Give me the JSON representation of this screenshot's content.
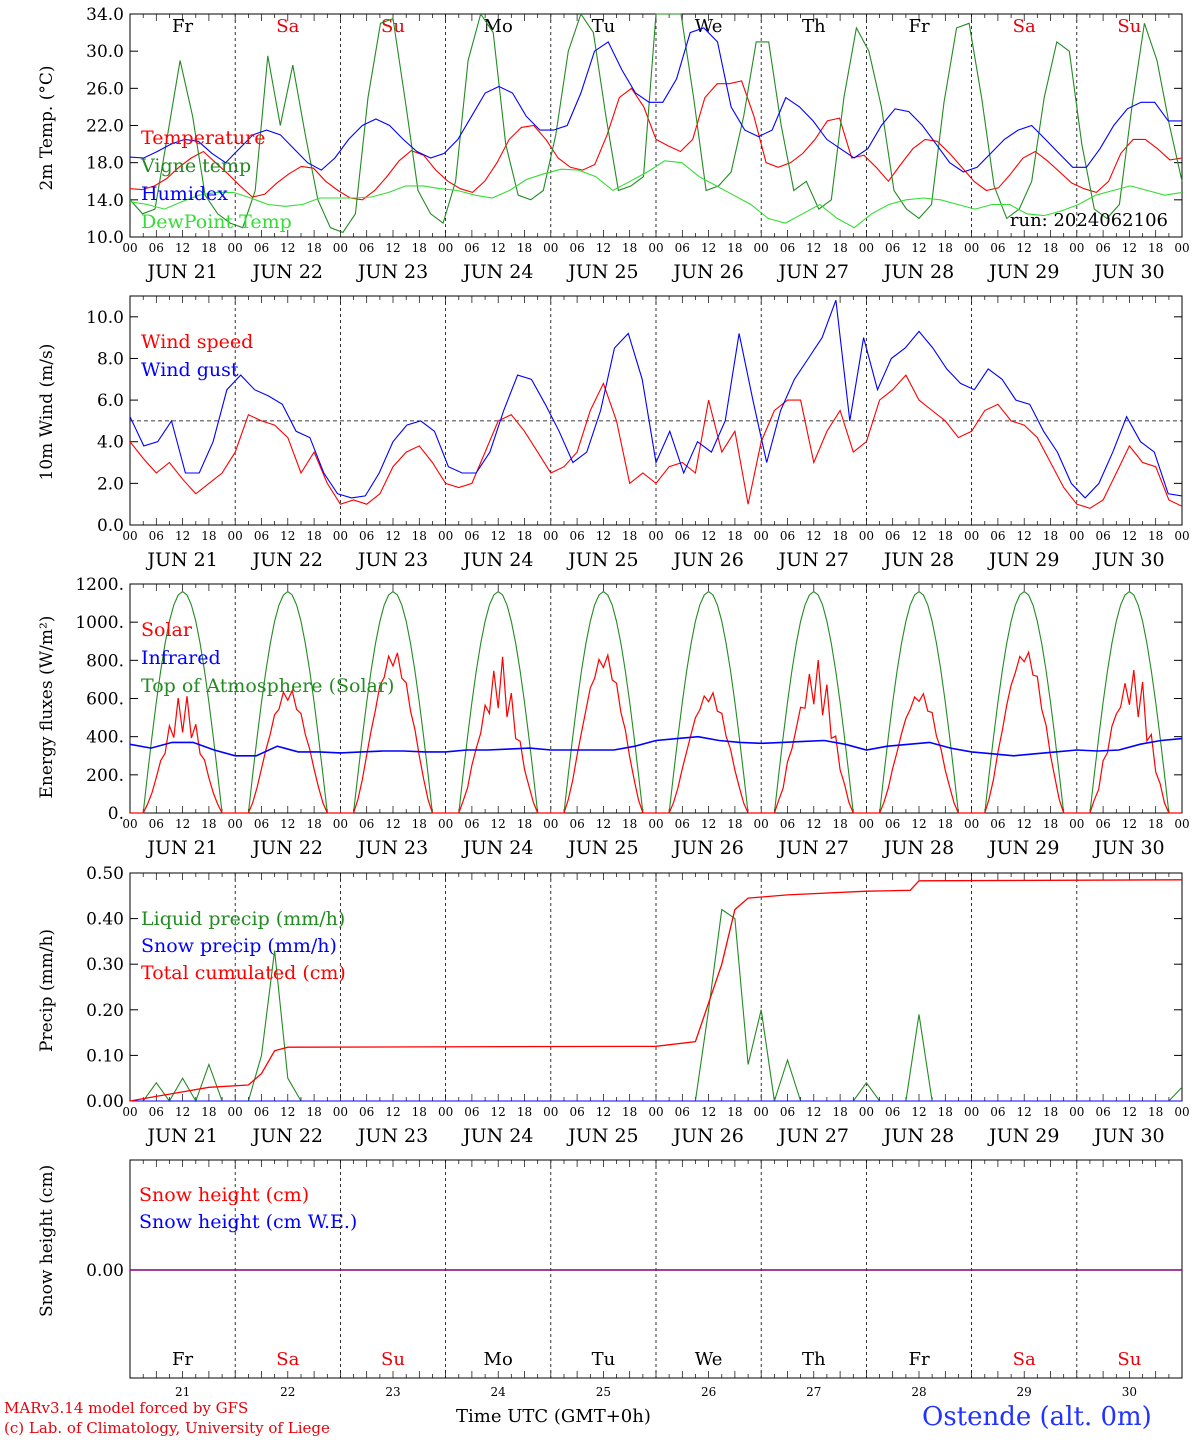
{
  "days": [
    "JUN 21",
    "JUN 22",
    "JUN 23",
    "JUN 24",
    "JUN 25",
    "JUN 26",
    "JUN 27",
    "JUN 28",
    "JUN 29",
    "JUN 30"
  ],
  "day_numbers": [
    "21",
    "22",
    "23",
    "24",
    "25",
    "26",
    "27",
    "28",
    "29",
    "30"
  ],
  "weekdays": [
    "Fr",
    "Sa",
    "Su",
    "Mo",
    "Tu",
    "We",
    "Th",
    "Fr",
    "Sa",
    "Su"
  ],
  "weekend_flags": [
    false,
    true,
    true,
    false,
    false,
    false,
    false,
    false,
    true,
    true
  ],
  "hour_ticks": [
    "00",
    "06",
    "12",
    "18"
  ],
  "hour_tick_last": "00",
  "colors": {
    "weekday": "#000000",
    "weekend": "#e8000b",
    "red": "#ff0000",
    "blue": "#0000ff",
    "green": "#228b22",
    "lightgreen": "#33dd33",
    "purple": "#800080"
  },
  "footer": {
    "credit_line1": "MARv3.14 model forced by GFS",
    "credit_line2": "(c) Lab. of Climatology, University of Liege",
    "xaxis_title": "Time UTC (GMT+0h)",
    "station": "Ostende (alt. 0m)"
  },
  "chart_data": [
    {
      "type": "line",
      "ylabel": "2m Temp. (°C)",
      "ylim": [
        10,
        34
      ],
      "yticks": [
        "10.0",
        "14.0",
        "18.0",
        "22.0",
        "26.0",
        "30.0",
        "34.0"
      ],
      "annotation": "run: 2024062106",
      "x_unit": "hours since 2024-06-21 00 UTC, 3-hourly",
      "series": [
        {
          "name": "Temperature",
          "color": "red",
          "values": [
            15.2,
            15.1,
            15.5,
            16.3,
            17.5,
            18.5,
            19.2,
            18.0,
            16.8,
            15.5,
            14.3,
            14.6,
            15.8,
            16.8,
            17.6,
            17.4,
            16.0,
            15.0,
            14.2,
            14.0,
            15.0,
            16.5,
            18.2,
            19.3,
            18.8,
            17.2,
            16.0,
            15.2,
            14.8,
            16.0,
            18.0,
            20.5,
            21.8,
            22.0,
            20.5,
            18.5,
            17.5,
            17.2,
            17.8,
            21.0,
            25.0,
            26.0,
            24.0,
            20.5,
            19.8,
            19.2,
            20.5,
            25.0,
            26.5,
            26.5,
            26.8,
            23.0,
            18.0,
            17.5,
            18.0,
            19.0,
            20.5,
            22.5,
            22.8,
            18.5,
            18.8,
            17.5,
            16.0,
            17.8,
            19.5,
            20.5,
            20.3,
            19.0,
            17.5,
            16.0,
            15.0,
            15.3,
            16.8,
            18.5,
            19.2,
            18.2,
            17.0,
            15.8,
            15.2,
            14.8,
            16.0,
            19.0,
            20.5,
            20.5,
            19.5,
            18.3,
            18.5
          ]
        },
        {
          "name": "Vigne temp",
          "color": "green",
          "values": [
            14.0,
            12.5,
            13.0,
            21.0,
            29.0,
            23.0,
            14.5,
            12.5,
            11.5,
            11.0,
            15.0,
            29.5,
            22.0,
            28.5,
            21.0,
            14.0,
            11.0,
            10.5,
            12.5,
            25.0,
            33.0,
            33.5,
            24.5,
            15.0,
            12.5,
            11.5,
            16.0,
            29.0,
            34.0,
            32.0,
            20.0,
            14.5,
            14.0,
            15.0,
            21.0,
            30.0,
            34.0,
            32.0,
            23.0,
            15.0,
            15.5,
            16.5,
            34.0,
            34.0,
            34.0,
            25.0,
            15.0,
            15.5,
            17.0,
            23.0,
            31.0,
            31.0,
            22.0,
            15.0,
            16.0,
            13.0,
            14.0,
            25.0,
            32.5,
            30.0,
            24.0,
            15.0,
            13.0,
            12.0,
            13.5,
            24.5,
            32.5,
            33.0,
            25.0,
            15.5,
            12.0,
            13.0,
            16.0,
            25.0,
            31.0,
            30.0,
            20.0,
            13.0,
            12.0,
            13.5,
            24.0,
            33.0,
            29.0,
            22.0,
            16.0
          ]
        },
        {
          "name": "Humidex",
          "color": "blue",
          "values": [
            18.6,
            18.5,
            19.2,
            20.0,
            20.5,
            20.3,
            19.0,
            18.0,
            19.5,
            21.0,
            21.5,
            21.0,
            19.5,
            18.0,
            17.2,
            18.5,
            20.5,
            22.0,
            22.7,
            22.0,
            20.5,
            19.2,
            18.5,
            19.0,
            20.5,
            23.0,
            25.5,
            26.2,
            25.5,
            23.0,
            21.5,
            21.5,
            22.0,
            25.5,
            30.0,
            31.0,
            28.0,
            25.5,
            24.5,
            24.5,
            27.0,
            32.0,
            32.5,
            31.0,
            24.0,
            21.5,
            20.8,
            21.5,
            25.0,
            24.0,
            22.5,
            20.5,
            19.5,
            18.5,
            19.5,
            22.0,
            23.8,
            23.5,
            22.0,
            20.0,
            18.0,
            17.0,
            17.5,
            19.0,
            20.5,
            21.5,
            22.0,
            20.5,
            19.0,
            17.5,
            17.5,
            19.5,
            22.0,
            23.8,
            24.5,
            24.5,
            22.5,
            22.5
          ]
        },
        {
          "name": "DewPoint Temp",
          "color": "lightgreen",
          "values": [
            13.8,
            13.5,
            13.0,
            13.8,
            14.5,
            14.8,
            14.8,
            14.2,
            13.5,
            13.3,
            13.5,
            14.2,
            14.2,
            14.2,
            14.3,
            14.8,
            15.5,
            15.5,
            15.2,
            15.0,
            14.5,
            14.2,
            15.0,
            16.2,
            16.8,
            17.3,
            17.2,
            16.5,
            15.0,
            16.0,
            17.0,
            18.2,
            18.0,
            16.5,
            15.5,
            14.5,
            13.5,
            12.0,
            11.5,
            12.5,
            13.5,
            12.0,
            11.0,
            12.5,
            13.5,
            14.0,
            14.2,
            14.0,
            13.5,
            13.0,
            13.5,
            13.5,
            12.5,
            12.3,
            12.8,
            13.5,
            14.5,
            15.0,
            15.5,
            15.0,
            14.5,
            14.8
          ]
        }
      ]
    },
    {
      "type": "line",
      "ylabel": "10m Wind (m/s)",
      "ylim": [
        0,
        11
      ],
      "yticks": [
        "0.0",
        "2.0",
        "4.0",
        "6.0",
        "8.0",
        "10.0"
      ],
      "reference_line": 5.0,
      "series": [
        {
          "name": "Wind speed",
          "color": "red",
          "values": [
            4.0,
            3.2,
            2.5,
            3.0,
            2.2,
            1.5,
            2.0,
            2.5,
            3.5,
            5.3,
            5.0,
            4.8,
            4.2,
            2.5,
            3.5,
            2.0,
            1.0,
            1.2,
            1.0,
            1.5,
            2.8,
            3.5,
            3.8,
            3.0,
            2.0,
            1.8,
            2.0,
            3.5,
            5.0,
            5.3,
            4.5,
            3.5,
            2.5,
            2.8,
            3.5,
            5.5,
            6.8,
            5.0,
            2.0,
            2.5,
            2.0,
            2.8,
            3.0,
            2.5,
            6.0,
            3.5,
            4.5,
            1.0,
            4.0,
            5.5,
            6.0,
            6.0,
            3.0,
            4.5,
            5.5,
            3.5,
            4.0,
            6.0,
            6.5,
            7.2,
            6.0,
            5.5,
            5.0,
            4.2,
            4.5,
            5.5,
            5.8,
            5.0,
            4.8,
            4.2,
            3.0,
            1.8,
            1.0,
            0.8,
            1.2,
            2.5,
            3.8,
            3.0,
            2.8,
            1.2,
            0.9
          ]
        },
        {
          "name": "Wind gust",
          "color": "blue",
          "values": [
            5.2,
            3.8,
            4.0,
            5.0,
            2.5,
            2.5,
            4.0,
            6.5,
            7.2,
            6.5,
            6.2,
            5.8,
            4.5,
            4.2,
            2.5,
            1.5,
            1.3,
            1.4,
            2.5,
            4.0,
            4.8,
            5.0,
            4.5,
            2.8,
            2.5,
            2.5,
            3.5,
            5.5,
            7.2,
            7.0,
            5.8,
            4.5,
            3.0,
            3.5,
            5.5,
            8.5,
            9.2,
            7.0,
            3.0,
            4.5,
            2.5,
            4.0,
            3.5,
            5.0,
            9.2,
            6.0,
            3.0,
            5.5,
            7.0,
            8.0,
            9.0,
            10.8,
            5.0,
            9.0,
            6.5,
            8.0,
            8.5,
            9.3,
            8.5,
            7.5,
            6.8,
            6.5,
            7.5,
            7.0,
            6.0,
            5.8,
            4.5,
            3.5,
            2.0,
            1.3,
            2.0,
            3.5,
            5.2,
            4.0,
            3.5,
            1.5,
            1.4
          ]
        }
      ]
    },
    {
      "type": "line",
      "ylabel": "Energy fluxes (W/m²)",
      "ylim": [
        0,
        1200
      ],
      "yticks": [
        "0.",
        "200.",
        "400.",
        "600.",
        "800.",
        "1000.",
        "1200."
      ],
      "series": [
        {
          "name": "Solar",
          "color": "red",
          "daily_peaks": [
            650,
            660,
            860,
            840,
            850,
            650,
            860,
            650,
            880,
            840
          ]
        },
        {
          "name": "Infrared",
          "color": "blue",
          "values": [
            360,
            340,
            370,
            370,
            330,
            300,
            300,
            350,
            320,
            320,
            315,
            320,
            325,
            325,
            320,
            320,
            330,
            330,
            335,
            340,
            330,
            330,
            330,
            330,
            350,
            380,
            390,
            400,
            380,
            370,
            365,
            370,
            375,
            380,
            360,
            330,
            350,
            360,
            370,
            340,
            320,
            310,
            300,
            310,
            320,
            330,
            325,
            330,
            360,
            380,
            390
          ]
        },
        {
          "name": "Top of Atmosphere (Solar)",
          "color": "green",
          "daily_peak": 1160
        }
      ]
    },
    {
      "type": "line",
      "ylabel": "Precip (mm/h)",
      "ylim": [
        0,
        0.5
      ],
      "yticks": [
        "0.00",
        "0.10",
        "0.20",
        "0.30",
        "0.40",
        "0.50"
      ],
      "series": [
        {
          "name": "Liquid precip (mm/h)",
          "color": "green",
          "spikes": [
            [
              6,
              0.04
            ],
            [
              12,
              0.05
            ],
            [
              18,
              0.08
            ],
            [
              30,
              0.1
            ],
            [
              33,
              0.33
            ],
            [
              36,
              0.05
            ],
            [
              132,
              0.2
            ],
            [
              135,
              0.42
            ],
            [
              138,
              0.4
            ],
            [
              141,
              0.08
            ],
            [
              144,
              0.2
            ],
            [
              150,
              0.09
            ],
            [
              168,
              0.04
            ],
            [
              180,
              0.19
            ],
            [
              240,
              0.03
            ]
          ]
        },
        {
          "name": "Snow precip (mm/h)",
          "color": "blue",
          "values": [
            0
          ]
        },
        {
          "name": "Total cumulated (cm)",
          "color": "red",
          "steps": [
            [
              0,
              0.0
            ],
            [
              6,
              0.01
            ],
            [
              12,
              0.02
            ],
            [
              18,
              0.03
            ],
            [
              27,
              0.035
            ],
            [
              30,
              0.06
            ],
            [
              33,
              0.11
            ],
            [
              36,
              0.118
            ],
            [
              120,
              0.12
            ],
            [
              129,
              0.13
            ],
            [
              135,
              0.3
            ],
            [
              138,
              0.42
            ],
            [
              141,
              0.445
            ],
            [
              150,
              0.452
            ],
            [
              168,
              0.46
            ],
            [
              178,
              0.462
            ],
            [
              180,
              0.483
            ],
            [
              240,
              0.485
            ]
          ]
        }
      ]
    },
    {
      "type": "line",
      "ylabel": "Snow height (cm)",
      "yticks": [
        "0.00"
      ],
      "series": [
        {
          "name": "Snow height (cm)",
          "color": "red",
          "values": [
            0.0
          ]
        },
        {
          "name": "Snow height (cm W.E.)",
          "color": "blue",
          "values": [
            0.0
          ]
        }
      ]
    }
  ]
}
